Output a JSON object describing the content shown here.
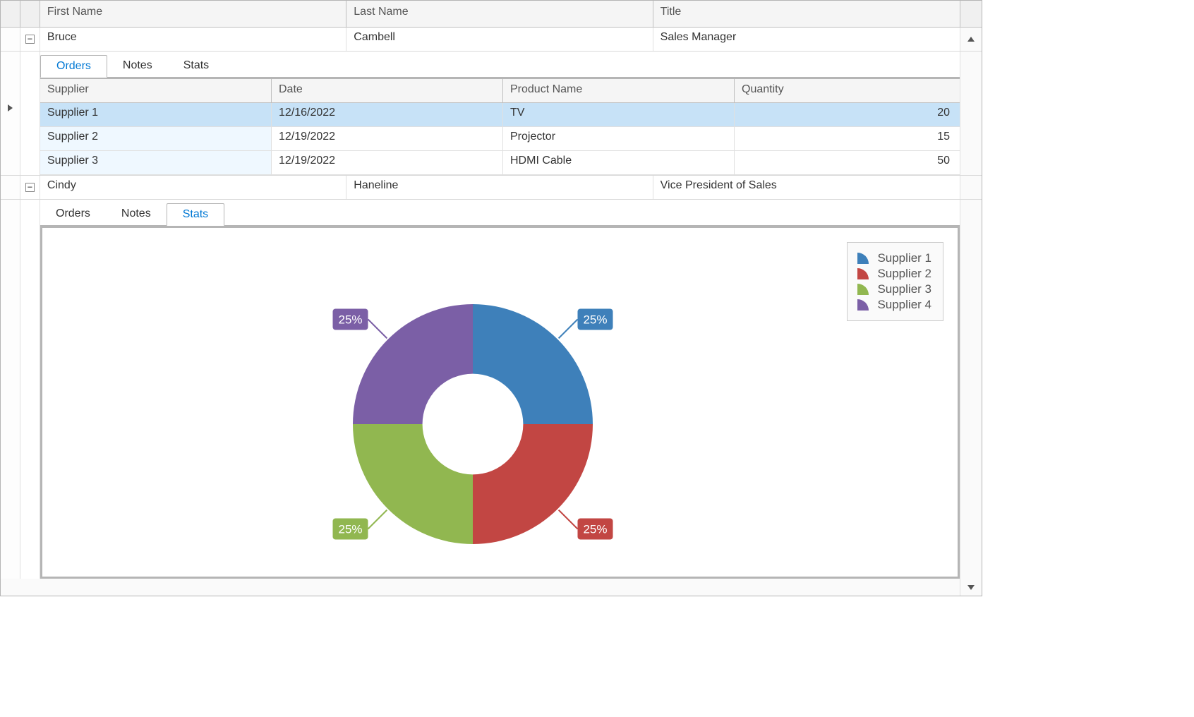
{
  "columns": {
    "first": "First Name",
    "last": "Last Name",
    "title": "Title"
  },
  "rows": [
    {
      "expanded": true,
      "indicator": false,
      "first": "Bruce",
      "last": "Cambell",
      "title": "Sales Manager",
      "tabs": {
        "items": [
          "Orders",
          "Notes",
          "Stats"
        ],
        "activeIndex": 0
      },
      "orders": {
        "columns": {
          "supplier": "Supplier",
          "date": "Date",
          "product": "Product Name",
          "qty": "Quantity"
        },
        "rows": [
          {
            "supplier": "Supplier 1",
            "date": "12/16/2022",
            "product": "TV",
            "qty": "20",
            "selected": true
          },
          {
            "supplier": "Supplier 2",
            "date": "12/19/2022",
            "product": "Projector",
            "qty": "15",
            "selected": false
          },
          {
            "supplier": "Supplier 3",
            "date": "12/19/2022",
            "product": "HDMI Cable",
            "qty": "50",
            "selected": false
          }
        ]
      }
    },
    {
      "expanded": true,
      "indicator": false,
      "first": "Cindy",
      "last": "Haneline",
      "title": "Vice President of Sales",
      "tabs": {
        "items": [
          "Orders",
          "Notes",
          "Stats"
        ],
        "activeIndex": 2
      },
      "chart": {
        "type": "donut",
        "inner_radius_ratio": 0.42,
        "background_color": "#ffffff",
        "label_bg_uses_slice_color": true,
        "label_text_color": "#ffffff",
        "label_fontsize": 17,
        "legend_fontsize": 17,
        "legend_text_color": "#555555",
        "legend_border_color": "#cccccc",
        "legend_bg_color": "#fafafa",
        "slices": [
          {
            "name": "Supplier 1",
            "value": 25,
            "label": "25%",
            "color": "#3e80ba"
          },
          {
            "name": "Supplier 2",
            "value": 25,
            "label": "25%",
            "color": "#c24643"
          },
          {
            "name": "Supplier 3",
            "value": 25,
            "label": "25%",
            "color": "#91b750"
          },
          {
            "name": "Supplier 4",
            "value": 25,
            "label": "25%",
            "color": "#7b5fa6"
          }
        ]
      }
    }
  ]
}
